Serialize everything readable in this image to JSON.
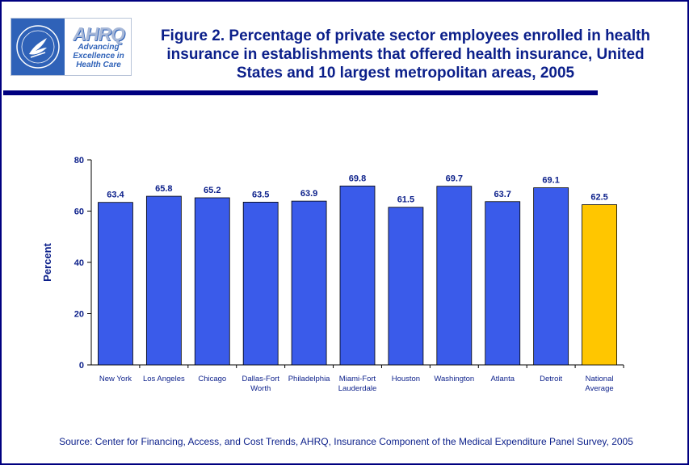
{
  "header": {
    "title": "Figure 2. Percentage of private sector employees enrolled in health insurance in establishments that offered health insurance, United States and 10 largest metropolitan areas, 2005",
    "logo_mark": "AHRQ",
    "logo_tagline_1": "Advancing",
    "logo_tagline_2": "Excellence in",
    "logo_tagline_3": "Health Care"
  },
  "colors": {
    "frame": "#000080",
    "title": "#0b1f8a",
    "bar": "#3a5bea",
    "highlight_bar": "#ffc600"
  },
  "chart_data": {
    "type": "bar",
    "title": "",
    "xlabel": "",
    "ylabel": "Percent",
    "ylim": [
      0,
      80
    ],
    "yticks": [
      0,
      20,
      40,
      60,
      80
    ],
    "categories": [
      [
        "New York"
      ],
      [
        "Los Angeles"
      ],
      [
        "Chicago"
      ],
      [
        "Dallas-Fort",
        "Worth"
      ],
      [
        "Philadelphia"
      ],
      [
        "Miami-Fort",
        "Lauderdale"
      ],
      [
        "Houston"
      ],
      [
        "Washington"
      ],
      [
        "Atlanta"
      ],
      [
        "Detroit"
      ],
      [
        "National",
        "Average"
      ]
    ],
    "values": [
      63.4,
      65.8,
      65.2,
      63.5,
      63.9,
      69.8,
      61.5,
      69.7,
      63.7,
      69.1,
      62.5
    ],
    "highlighted_category_index": 10,
    "grid": false,
    "legend": "none"
  },
  "footer": {
    "source": "Source: Center for Financing, Access, and Cost Trends, AHRQ, Insurance Component of the Medical Expenditure Panel Survey, 2005"
  }
}
